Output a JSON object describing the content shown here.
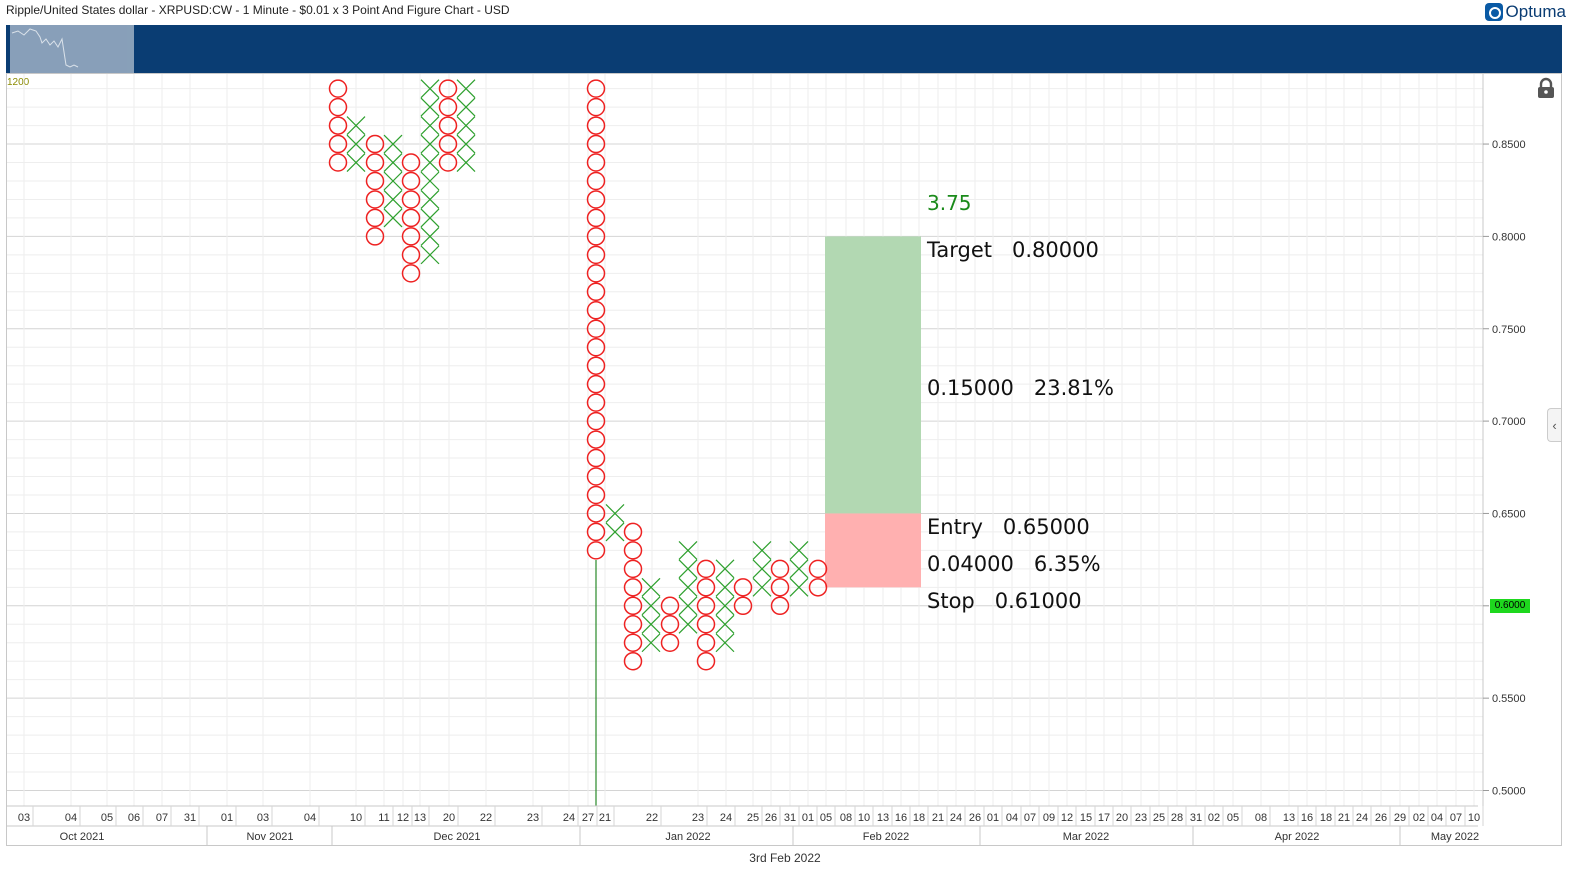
{
  "header": {
    "title": "Ripple/United States dollar - XRPUSD:CW - 1 Minute - $0.01 x 3 Point And Figure Chart - USD",
    "brand": "Optuma",
    "level": "1200"
  },
  "price_badge": "0.6000",
  "footer_date": "3rd Feb 2022",
  "annotation": {
    "count": "3.75",
    "target": "Target   0.80000",
    "reward": "0.15000   23.81%",
    "entry": "Entry   0.65000",
    "risk": "0.04000   6.35%",
    "stop": "Stop   0.61000",
    "reward_color": "#b2d8b2",
    "risk_color": "#ffb0b0"
  },
  "chart_data": {
    "type": "point-and-figure",
    "box_size": 0.01,
    "reversal": 3,
    "ylim": [
      0.495,
      0.88
    ],
    "y_ticks": [
      "0.5000",
      "0.5500",
      "0.6000",
      "0.6500",
      "0.7000",
      "0.7500",
      "0.8000",
      "0.8500"
    ],
    "colors": {
      "x": "#2ea02e",
      "o": "#ee2222",
      "grid": "#e3e3e3",
      "vline": "#2a8a2a"
    },
    "columns": [
      {
        "type": "O",
        "low": 0.84,
        "high": 0.88
      },
      {
        "type": "X",
        "low": 0.84,
        "high": 0.86
      },
      {
        "type": "O",
        "low": 0.8,
        "high": 0.85
      },
      {
        "type": "X",
        "low": 0.81,
        "high": 0.85
      },
      {
        "type": "O",
        "low": 0.78,
        "high": 0.84
      },
      {
        "type": "X",
        "low": 0.79,
        "high": 0.88
      },
      {
        "type": "O",
        "low": 0.84,
        "high": 0.88
      },
      {
        "type": "X",
        "low": 0.84,
        "high": 0.88
      },
      {
        "type": "O",
        "low": 0.63,
        "high": 0.88
      },
      {
        "type": "X",
        "low": 0.64,
        "high": 0.65
      },
      {
        "type": "O",
        "low": 0.57,
        "high": 0.64
      },
      {
        "type": "X",
        "low": 0.58,
        "high": 0.61
      },
      {
        "type": "O",
        "low": 0.58,
        "high": 0.6
      },
      {
        "type": "X",
        "low": 0.59,
        "high": 0.63
      },
      {
        "type": "O",
        "low": 0.57,
        "high": 0.62
      },
      {
        "type": "X",
        "low": 0.58,
        "high": 0.62
      },
      {
        "type": "O",
        "low": 0.6,
        "high": 0.61
      },
      {
        "type": "X",
        "low": 0.61,
        "high": 0.63
      },
      {
        "type": "O",
        "low": 0.6,
        "high": 0.62
      },
      {
        "type": "X",
        "low": 0.61,
        "high": 0.63
      },
      {
        "type": "O",
        "low": 0.61,
        "high": 0.62
      }
    ],
    "date_labels": [
      "03",
      "04",
      "05",
      "06",
      "07",
      "31",
      "01",
      "03",
      "04",
      "10",
      "11",
      "12",
      "13",
      "20",
      "22",
      "23",
      "24",
      "27",
      "21",
      "22",
      "23",
      "24",
      "25",
      "26",
      "31",
      "01",
      "05",
      "08",
      "10",
      "13",
      "16",
      "18",
      "21",
      "24",
      "26",
      "01",
      "04",
      "07",
      "09",
      "12",
      "15",
      "17",
      "20",
      "23",
      "25",
      "28",
      "31",
      "02",
      "05",
      "08",
      "13",
      "16",
      "18",
      "21",
      "24",
      "26",
      "29",
      "02",
      "04",
      "07",
      "10"
    ],
    "month_labels": [
      "Oct 2021",
      "Nov 2021",
      "Dec 2021",
      "Jan 2022",
      "Feb 2022",
      "Mar 2022",
      "Apr 2022",
      "May 2022"
    ]
  }
}
